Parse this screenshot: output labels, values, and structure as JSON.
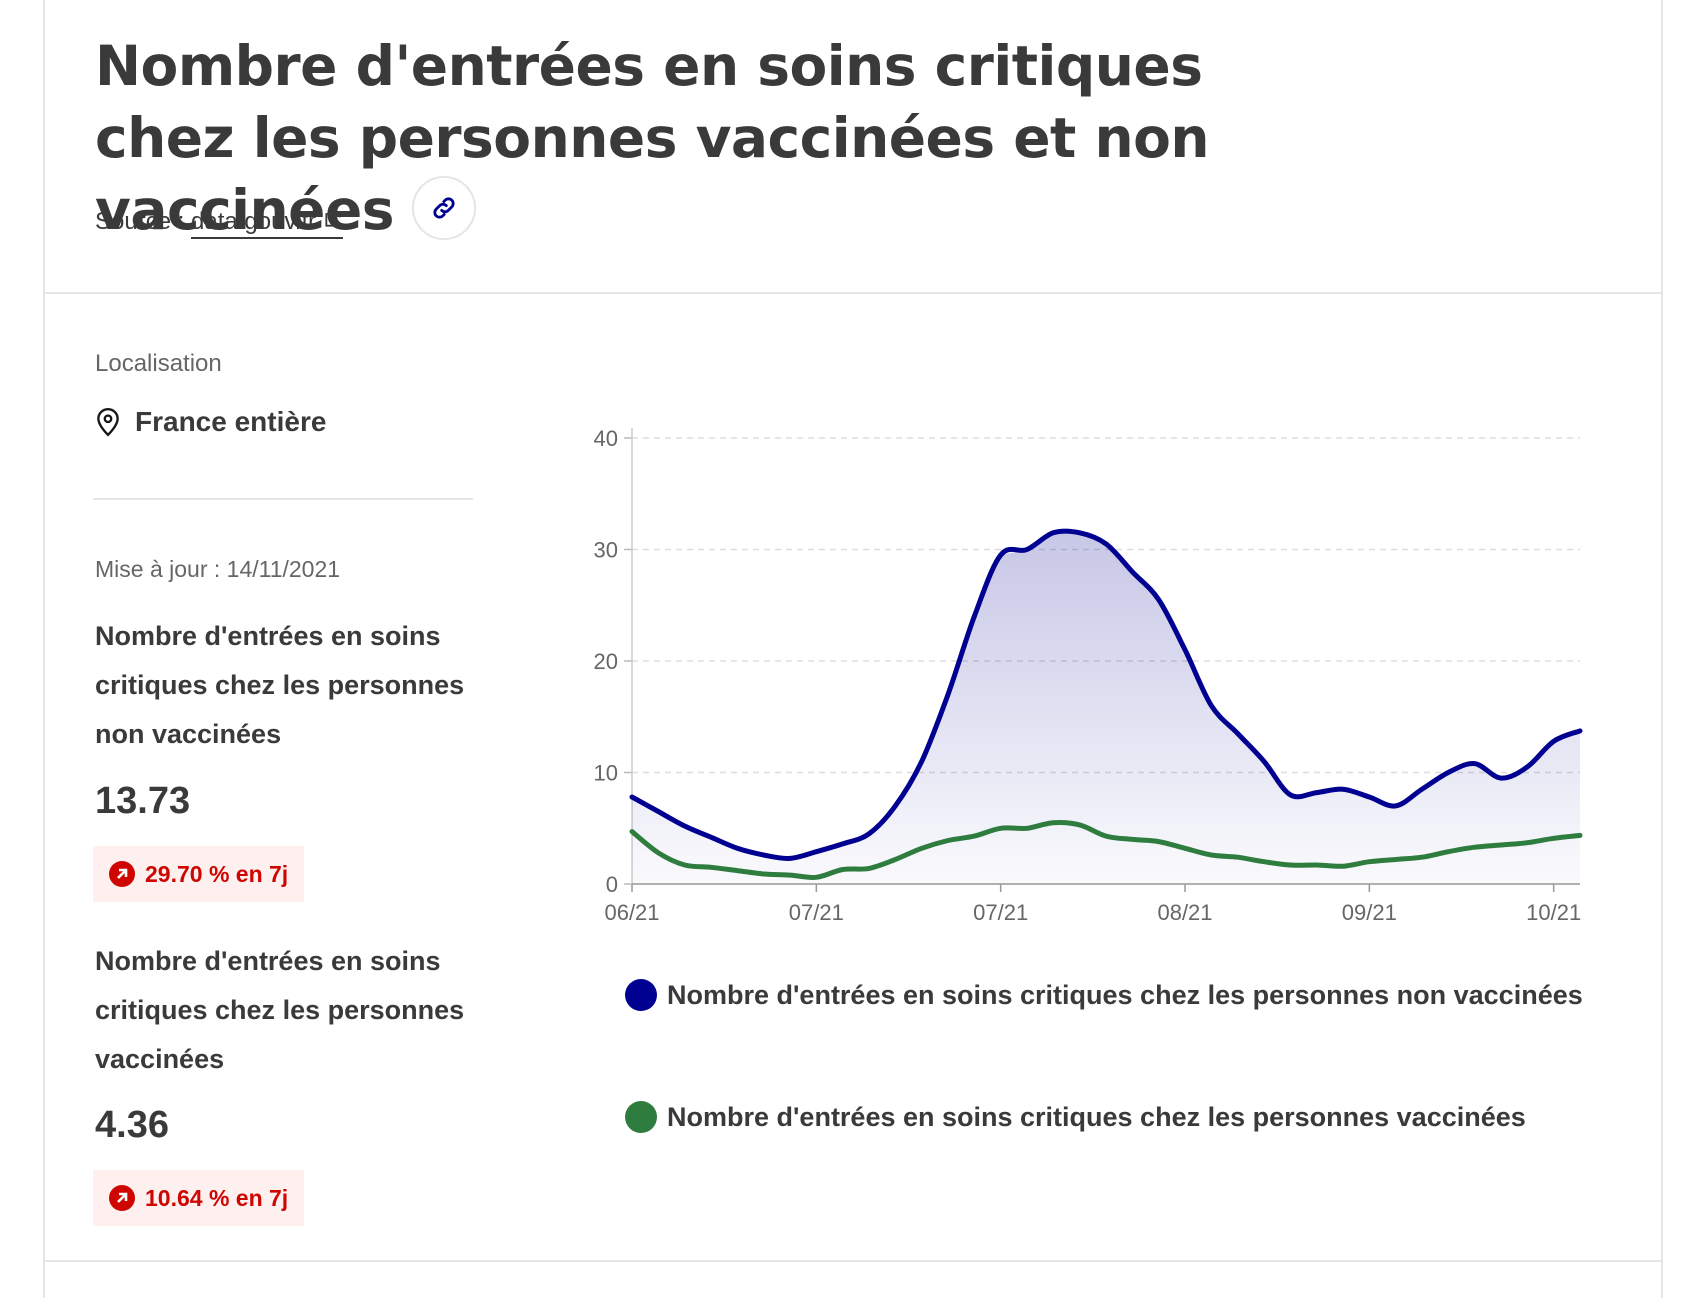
{
  "header": {
    "title": "Nombre d'entrées en soins critiques chez les personnes vaccinées et non vaccinées",
    "source_prefix": "Source : ",
    "source_link": "data.gouv.fr"
  },
  "sidebar": {
    "location_label": "Localisation",
    "location_value": "France entière",
    "update": "Mise à jour : 14/11/2021",
    "kpis": [
      {
        "label": "Nombre d'entrées en soins critiques chez les personnes non vaccinées",
        "value": "13.73",
        "trend": "29.70 % en 7j"
      },
      {
        "label": "Nombre d'entrées en soins critiques chez les personnes vaccinées",
        "value": "4.36",
        "trend": "10.64 % en 7j"
      }
    ]
  },
  "colors": {
    "unvaccinated": "#000091",
    "vaccinated": "#2f7c3f",
    "trend": "#ce0500"
  },
  "chart_data": {
    "type": "area",
    "x_ticks": [
      "06/21",
      "07/21",
      "07/21",
      "08/21",
      "09/21",
      "10/21"
    ],
    "ylim": [
      0,
      40
    ],
    "y_ticks": [
      "0",
      "10",
      "20",
      "30",
      "40"
    ],
    "grid": true,
    "legend_position": "bottom",
    "x": [
      0,
      5,
      10,
      15,
      20,
      25,
      30,
      35,
      40,
      45,
      50,
      55,
      60,
      65,
      70,
      75,
      80,
      85,
      90,
      95,
      100,
      105,
      110,
      115,
      120,
      125,
      130,
      135,
      140,
      145,
      150,
      155,
      160,
      165,
      170,
      175,
      180
    ],
    "series": [
      {
        "name": "Nombre d'entrées en soins critiques chez les personnes non vaccinées",
        "values": [
          7.8,
          6.5,
          5.2,
          4.2,
          3.2,
          2.6,
          2.3,
          2.9,
          3.6,
          4.5,
          7.0,
          11.0,
          17.0,
          24.0,
          29.5,
          30.0,
          31.5,
          31.5,
          30.5,
          28.0,
          25.5,
          21.0,
          16.0,
          13.5,
          11.0,
          8.0,
          8.2,
          8.5,
          7.8,
          7.0,
          8.5,
          10.0,
          10.8,
          9.5,
          10.5,
          12.8,
          13.73
        ]
      },
      {
        "name": "Nombre d'entrées en soins critiques chez les personnes vaccinées",
        "values": [
          4.7,
          2.8,
          1.7,
          1.5,
          1.2,
          0.9,
          0.8,
          0.6,
          1.3,
          1.4,
          2.2,
          3.2,
          3.9,
          4.3,
          5.0,
          5.0,
          5.5,
          5.3,
          4.3,
          4.0,
          3.8,
          3.2,
          2.6,
          2.4,
          2.0,
          1.7,
          1.7,
          1.6,
          2.0,
          2.2,
          2.4,
          2.9,
          3.3,
          3.5,
          3.7,
          4.1,
          4.36
        ]
      }
    ]
  }
}
